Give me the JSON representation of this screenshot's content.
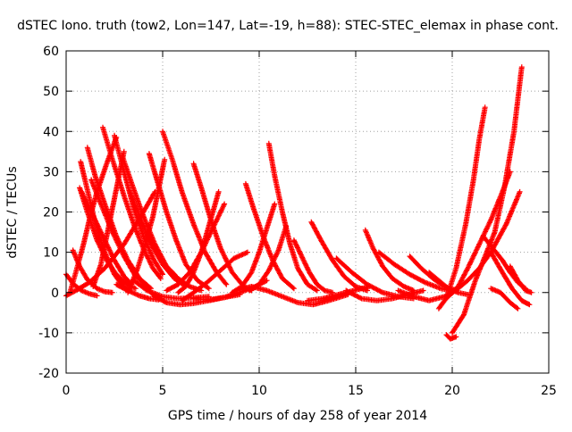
{
  "chart_data": {
    "type": "scatter",
    "title": "dSTEC Iono. truth (tow2, Lon=147, Lat=-19, h=88): STEC-STEC_elemax in phase cont.",
    "xlabel": "GPS time / hours of day 258 of year 2014",
    "ylabel": "dSTEC  / TECUs",
    "xlim": [
      0,
      25
    ],
    "ylim": [
      -20,
      60
    ],
    "xticks": [
      0,
      5,
      10,
      15,
      20,
      25
    ],
    "yticks": [
      -20,
      -10,
      0,
      10,
      20,
      30,
      40,
      50,
      60
    ],
    "grid": true,
    "marker": "plus",
    "color": "#ff0000",
    "series": [
      {
        "x": [
          0.0,
          0.4,
          0.8,
          1.2,
          1.6
        ],
        "y": [
          4.5,
          2.0,
          0.5,
          -0.3,
          -0.8
        ]
      },
      {
        "x": [
          0.0,
          0.5,
          1.2,
          2.0,
          3.0,
          4.0,
          4.6
        ],
        "y": [
          -0.8,
          0.5,
          2.5,
          6.0,
          12.0,
          20.0,
          25.0
        ]
      },
      {
        "x": [
          0.35,
          0.7,
          1.1,
          1.6,
          2.0,
          2.4
        ],
        "y": [
          10.5,
          6.5,
          3.2,
          1.0,
          0.2,
          0.0
        ]
      },
      {
        "x": [
          0.75,
          1.1,
          1.5,
          2.0,
          2.5,
          3.0,
          3.3
        ],
        "y": [
          32.5,
          25.5,
          17.5,
          10.0,
          4.5,
          1.2,
          0.5
        ]
      },
      {
        "x": [
          0.7,
          1.1,
          1.6,
          2.1,
          2.6,
          3.2,
          3.6
        ],
        "y": [
          26.0,
          20.0,
          13.0,
          8.0,
          4.5,
          1.8,
          1.0
        ]
      },
      {
        "x": [
          1.1,
          1.5,
          2.0,
          2.6,
          3.2,
          3.8,
          4.4
        ],
        "y": [
          36.0,
          29.0,
          22.0,
          14.0,
          8.0,
          3.5,
          1.0
        ]
      },
      {
        "x": [
          1.3,
          1.8,
          2.4,
          3.0,
          3.6,
          4.2
        ],
        "y": [
          28.0,
          22.0,
          15.0,
          9.0,
          4.0,
          1.5
        ]
      },
      {
        "x": [
          0.8,
          1.4,
          2.0,
          2.5,
          3.0,
          3.4
        ],
        "y": [
          25.0,
          19.0,
          13.0,
          8.0,
          4.0,
          2.0
        ]
      },
      {
        "x": [
          1.9,
          2.4,
          3.0,
          3.5,
          4.0,
          4.5,
          4.9
        ],
        "y": [
          41.0,
          33.0,
          24.0,
          17.0,
          11.0,
          6.0,
          3.5
        ]
      },
      {
        "x": [
          2.5,
          3.0,
          3.5,
          4.0,
          4.5,
          5.0
        ],
        "y": [
          39.0,
          30.0,
          21.0,
          14.0,
          8.5,
          4.5
        ]
      },
      {
        "x": [
          2.9,
          3.4,
          4.0,
          4.6,
          5.2,
          5.8
        ],
        "y": [
          34.0,
          27.0,
          19.0,
          12.0,
          6.5,
          3.5
        ]
      },
      {
        "x": [
          3.3,
          3.8,
          4.4,
          5.0,
          5.6,
          6.2
        ],
        "y": [
          25.0,
          19.0,
          12.0,
          7.0,
          3.5,
          1.5
        ]
      },
      {
        "x": [
          2.6,
          2.1,
          1.6,
          1.2,
          0.9,
          0.5,
          0.2
        ],
        "y": [
          38.5,
          32.0,
          25.0,
          18.0,
          12.0,
          5.0,
          0.0
        ]
      },
      {
        "x": [
          3.0,
          2.7,
          2.4,
          2.1,
          1.8,
          1.4
        ],
        "y": [
          35.0,
          28.0,
          21.0,
          14.0,
          7.0,
          1.5
        ]
      },
      {
        "x": [
          2.6,
          3.2,
          3.8,
          4.3,
          4.8
        ],
        "y": [
          2.0,
          0.5,
          -0.8,
          -1.5,
          -1.8
        ]
      },
      {
        "x": [
          4.3,
          4.7,
          5.2,
          5.7,
          6.2,
          6.8,
          7.4
        ],
        "y": [
          34.5,
          28.0,
          20.0,
          13.0,
          7.0,
          3.0,
          1.0
        ]
      },
      {
        "x": [
          4.2,
          4.7,
          5.2,
          5.8,
          6.4,
          7.0
        ],
        "y": [
          14.0,
          10.0,
          6.5,
          3.5,
          1.5,
          0.5
        ]
      },
      {
        "x": [
          5.0,
          5.5,
          6.0,
          6.6,
          7.2,
          7.8,
          8.3
        ],
        "y": [
          40.0,
          33.0,
          25.0,
          17.0,
          10.0,
          5.0,
          2.0
        ]
      },
      {
        "x": [
          5.1,
          4.8,
          4.5,
          4.1,
          3.7,
          3.2
        ],
        "y": [
          33.0,
          26.0,
          19.0,
          12.0,
          6.0,
          0.0
        ]
      },
      {
        "x": [
          4.0,
          4.6,
          5.2,
          5.9,
          6.6,
          7.4,
          8.2,
          9.0
        ],
        "y": [
          2.0,
          -1.0,
          -2.5,
          -3.0,
          -2.7,
          -2.0,
          -1.2,
          -0.5
        ]
      },
      {
        "x": [
          3.5,
          4.2,
          5.0,
          5.8,
          6.6,
          7.4
        ],
        "y": [
          3.0,
          0.5,
          -1.0,
          -1.5,
          -1.3,
          -1.0
        ]
      },
      {
        "x": [
          6.6,
          7.0,
          7.5,
          8.0,
          8.6,
          9.2,
          9.6
        ],
        "y": [
          32.0,
          26.0,
          18.0,
          11.0,
          5.0,
          1.5,
          0.5
        ]
      },
      {
        "x": [
          7.9,
          7.6,
          7.3,
          7.0,
          6.6,
          6.2,
          5.8
        ],
        "y": [
          25.0,
          20.0,
          15.0,
          10.0,
          5.0,
          1.5,
          0.0
        ]
      },
      {
        "x": [
          5.2,
          5.8,
          6.4,
          7.0,
          7.6,
          8.2
        ],
        "y": [
          0.5,
          2.0,
          5.0,
          10.0,
          16.0,
          22.0
        ]
      },
      {
        "x": [
          6.0,
          6.6,
          7.3,
          8.0,
          8.7,
          9.4
        ],
        "y": [
          -2.0,
          0.0,
          2.5,
          5.5,
          8.5,
          10.0
        ]
      },
      {
        "x": [
          6.6,
          7.4,
          8.2,
          9.0,
          9.8,
          10.4
        ],
        "y": [
          -1.5,
          -1.8,
          -1.2,
          0.0,
          1.5,
          3.0
        ]
      },
      {
        "x": [
          9.3,
          9.7,
          10.2,
          10.7,
          11.2,
          11.8
        ],
        "y": [
          27.0,
          21.0,
          14.0,
          8.0,
          3.5,
          1.0
        ]
      },
      {
        "x": [
          10.5,
          10.8,
          11.2,
          11.6,
          12.0,
          12.5,
          13.0
        ],
        "y": [
          37.0,
          29.0,
          20.0,
          12.0,
          6.0,
          2.0,
          0.5
        ]
      },
      {
        "x": [
          10.8,
          10.4,
          10.0,
          9.6,
          9.1,
          8.6
        ],
        "y": [
          22.0,
          16.0,
          10.0,
          5.0,
          1.5,
          0.0
        ]
      },
      {
        "x": [
          11.4,
          11.0,
          10.5,
          10.0,
          9.5
        ],
        "y": [
          16.5,
          10.5,
          5.5,
          2.0,
          0.5
        ]
      },
      {
        "x": [
          8.8,
          9.6,
          10.4,
          11.2,
          12.0,
          12.8,
          13.6,
          14.6
        ],
        "y": [
          0.5,
          1.5,
          0.5,
          -1.0,
          -2.5,
          -3.0,
          -2.0,
          -0.5
        ]
      },
      {
        "x": [
          11.8,
          12.2,
          12.6,
          13.0,
          13.4,
          13.8
        ],
        "y": [
          13.0,
          9.0,
          5.0,
          2.0,
          0.5,
          0.0
        ]
      },
      {
        "x": [
          12.7,
          13.2,
          13.8,
          14.4,
          15.0,
          15.6
        ],
        "y": [
          17.5,
          13.0,
          8.0,
          4.0,
          1.5,
          0.5
        ]
      },
      {
        "x": [
          12.5,
          13.3,
          14.1,
          14.9,
          15.7
        ],
        "y": [
          -2.0,
          -1.5,
          -0.5,
          0.5,
          1.5
        ]
      },
      {
        "x": [
          14.0,
          14.8,
          15.6,
          16.4,
          17.2,
          18.0
        ],
        "y": [
          8.5,
          5.0,
          2.0,
          0.0,
          -1.0,
          -1.5
        ]
      },
      {
        "x": [
          15.5,
          15.9,
          16.4,
          16.9,
          17.5,
          18.0
        ],
        "y": [
          15.5,
          11.0,
          6.5,
          3.5,
          1.5,
          0.5
        ]
      },
      {
        "x": [
          14.5,
          15.3,
          16.1,
          16.9,
          17.7,
          18.5
        ],
        "y": [
          0.5,
          -1.5,
          -2.0,
          -1.5,
          -0.5,
          0.5
        ]
      },
      {
        "x": [
          16.2,
          17.0,
          17.8,
          18.6,
          19.4,
          19.9
        ],
        "y": [
          10.0,
          7.0,
          4.5,
          2.5,
          1.0,
          0.5
        ]
      },
      {
        "x": [
          17.8,
          18.4,
          19.0,
          19.6,
          20.2
        ],
        "y": [
          9.0,
          6.0,
          3.5,
          1.5,
          0.5
        ]
      },
      {
        "x": [
          17.2,
          18.0,
          18.8,
          19.6,
          20.2
        ],
        "y": [
          0.5,
          -1.0,
          -2.0,
          -1.0,
          1.0
        ]
      },
      {
        "x": [
          18.8,
          19.3,
          19.8,
          20.3,
          20.8
        ],
        "y": [
          5.0,
          3.0,
          1.0,
          0.0,
          -0.5
        ]
      },
      {
        "x": [
          19.3,
          19.6,
          19.9,
          20.3,
          20.8,
          21.4,
          22.0,
          22.8,
          23.5
        ],
        "y": [
          -4.0,
          -2.0,
          -0.5,
          1.0,
          3.0,
          6.0,
          10.0,
          17.0,
          25.0
        ]
      },
      {
        "x": [
          20.0,
          20.6,
          21.2,
          21.7,
          22.2,
          22.7,
          23.2,
          23.6
        ],
        "y": [
          -10.0,
          -5.5,
          3.0,
          9.0,
          15.0,
          26.0,
          40.0,
          56.0
        ]
      },
      {
        "x": [
          19.7,
          19.9,
          20.2
        ],
        "y": [
          -10.5,
          -11.5,
          -11.0
        ]
      },
      {
        "x": [
          19.8,
          20.2,
          20.7,
          21.1,
          21.4,
          21.7
        ],
        "y": [
          0.0,
          6.0,
          17.0,
          28.0,
          38.0,
          46.0
        ]
      },
      {
        "x": [
          20.2,
          20.8,
          21.4,
          22.0,
          22.6,
          23.0
        ],
        "y": [
          0.5,
          6.0,
          12.0,
          18.0,
          25.0,
          30.0
        ]
      },
      {
        "x": [
          21.6,
          22.1,
          22.6,
          23.0,
          23.4,
          23.8
        ],
        "y": [
          14.0,
          11.0,
          8.0,
          5.0,
          2.5,
          1.0
        ]
      },
      {
        "x": [
          22.0,
          22.6,
          23.1,
          23.6,
          24.0
        ],
        "y": [
          10.0,
          5.0,
          1.0,
          -2.0,
          -3.0
        ]
      },
      {
        "x": [
          23.0,
          23.4,
          23.8,
          24.1
        ],
        "y": [
          6.5,
          3.0,
          0.5,
          0.0
        ]
      },
      {
        "x": [
          22.0,
          22.5,
          23.0,
          23.4
        ],
        "y": [
          1.0,
          0.0,
          -2.5,
          -4.0
        ]
      }
    ]
  }
}
